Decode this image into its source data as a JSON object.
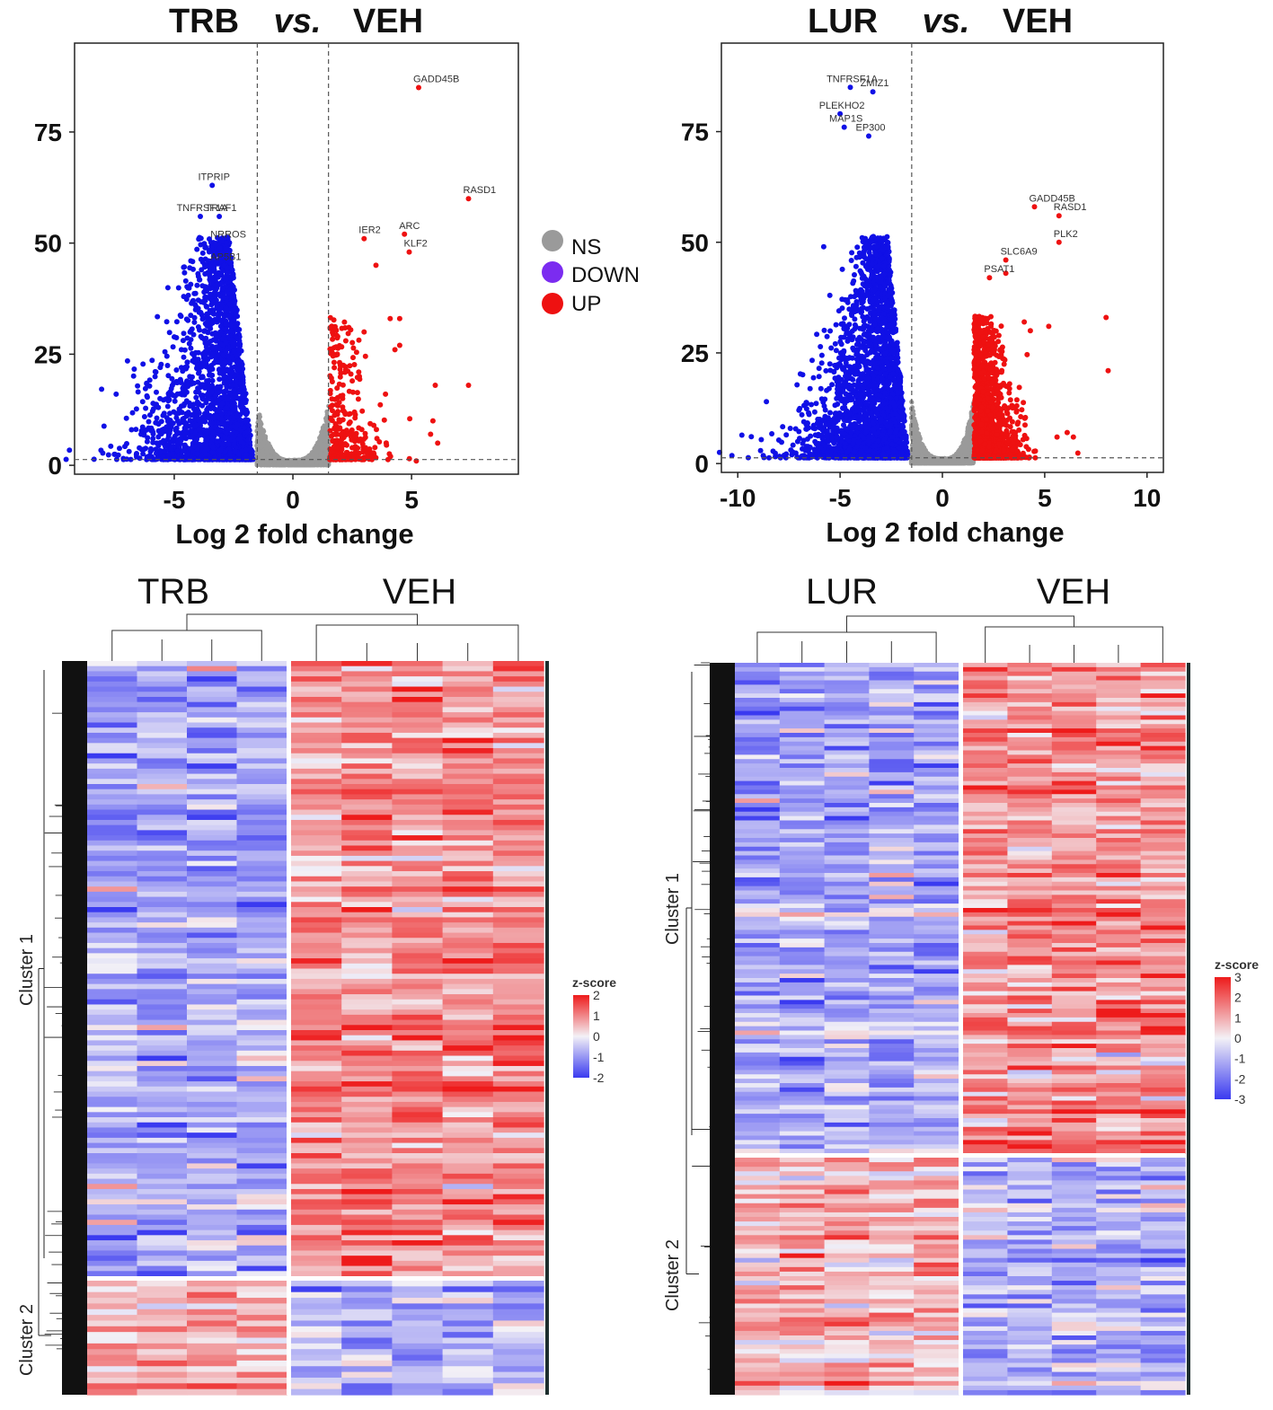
{
  "colors": {
    "ns": "#9a9a9a",
    "down": "#1010e6",
    "up": "#ee1111",
    "heat_low": "#3a3af0",
    "heat_mid": "#f3f1f6",
    "heat_high": "#ee1b1b"
  },
  "chart_data": [
    {
      "type": "scatter",
      "id": "volcano-trb",
      "title": {
        "left": "TRB",
        "mid": "vs.",
        "right": "VEH"
      },
      "xlabel": "Log 2 fold change",
      "ylabel": "",
      "xlim": [
        -9.2,
        9.5
      ],
      "ylim": [
        -2,
        95
      ],
      "xticks": [
        -5,
        0,
        5
      ],
      "yticks": [
        0,
        25,
        50,
        75
      ],
      "thresholds": {
        "fc": 1.5,
        "p": 1.3
      },
      "legend": {
        "position": "right",
        "entries": [
          {
            "key": "ns",
            "label": "NS"
          },
          {
            "key": "down",
            "label": "DOWN"
          },
          {
            "key": "up",
            "label": "UP"
          }
        ]
      },
      "labeled_genes": [
        {
          "gene": "GADD45B",
          "x": 5.3,
          "y": 85,
          "group": "up"
        },
        {
          "gene": "RASD1",
          "x": 7.4,
          "y": 60,
          "group": "up"
        },
        {
          "gene": "ARC",
          "x": 4.7,
          "y": 52,
          "group": "up"
        },
        {
          "gene": "IER2",
          "x": 3.0,
          "y": 51,
          "group": "up"
        },
        {
          "gene": "KLF2",
          "x": 4.9,
          "y": 48,
          "group": "up"
        },
        {
          "gene": "ITPRIP",
          "x": -3.4,
          "y": 63,
          "group": "down"
        },
        {
          "gene": "TNFRSF1A",
          "x": -3.9,
          "y": 56,
          "group": "down"
        },
        {
          "gene": "TRAF1",
          "x": -3.1,
          "y": 56,
          "group": "down"
        },
        {
          "gene": "NRROS",
          "x": -2.8,
          "y": 50,
          "group": "down"
        },
        {
          "gene": "AP5B1",
          "x": -2.9,
          "y": 45,
          "group": "down"
        }
      ],
      "extra_points": {
        "up": [
          [
            3.5,
            45
          ],
          [
            4.1,
            33
          ],
          [
            4.5,
            33
          ],
          [
            3.0,
            30
          ],
          [
            4.5,
            27
          ],
          [
            4.3,
            26
          ],
          [
            3.9,
            16
          ],
          [
            6.0,
            18
          ],
          [
            7.4,
            18
          ],
          [
            2.8,
            20
          ],
          [
            2.5,
            19
          ],
          [
            5.9,
            10
          ],
          [
            5.8,
            7
          ],
          [
            6.1,
            5
          ],
          [
            5.2,
            1
          ]
        ],
        "down": [
          [
            -4.3,
            46
          ],
          [
            -4.6,
            38
          ],
          [
            -4.1,
            35
          ],
          [
            -6.8,
            8
          ],
          [
            -6.4,
            7
          ],
          [
            -5.9,
            6
          ],
          [
            -5.6,
            15
          ],
          [
            -4.7,
            22
          ]
        ]
      }
    },
    {
      "type": "scatter",
      "id": "volcano-lur",
      "title": {
        "left": "LUR",
        "mid": "vs.",
        "right": "VEH"
      },
      "xlabel": "Log 2 fold change",
      "ylabel": "",
      "xlim": [
        -10.8,
        10.8
      ],
      "ylim": [
        -2,
        95
      ],
      "xticks": [
        -10,
        -5,
        0,
        5,
        10
      ],
      "yticks": [
        0,
        25,
        50,
        75
      ],
      "thresholds": {
        "fc": 1.5,
        "p": 1.3
      },
      "labeled_genes": [
        {
          "gene": "TNFRSF1A",
          "x": -4.5,
          "y": 85,
          "group": "down"
        },
        {
          "gene": "ZMIZ1",
          "x": -3.4,
          "y": 84,
          "group": "down"
        },
        {
          "gene": "PLEKHO2",
          "x": -5.0,
          "y": 79,
          "group": "down"
        },
        {
          "gene": "MAP1S",
          "x": -4.8,
          "y": 76,
          "group": "down"
        },
        {
          "gene": "EP300",
          "x": -3.6,
          "y": 74,
          "group": "down"
        },
        {
          "gene": "GADD45B",
          "x": 4.5,
          "y": 58,
          "group": "up"
        },
        {
          "gene": "RASD1",
          "x": 5.7,
          "y": 56,
          "group": "up"
        },
        {
          "gene": "PLK2",
          "x": 5.7,
          "y": 50,
          "group": "up"
        },
        {
          "gene": "SLC6A9",
          "x": 3.1,
          "y": 46,
          "group": "up"
        },
        {
          "gene": "PSAT1",
          "x": 2.3,
          "y": 42,
          "group": "up"
        }
      ],
      "extra_points": {
        "up": [
          [
            8.0,
            33
          ],
          [
            8.1,
            21
          ],
          [
            5.6,
            6
          ],
          [
            6.1,
            7
          ],
          [
            6.4,
            6
          ],
          [
            4.3,
            30
          ],
          [
            5.2,
            31
          ],
          [
            4.0,
            32
          ],
          [
            3.1,
            43
          ]
        ],
        "down": [
          [
            -8.6,
            14
          ],
          [
            -6.3,
            8
          ],
          [
            -6.0,
            10
          ],
          [
            -5.8,
            49
          ],
          [
            -5.5,
            38
          ]
        ]
      }
    },
    {
      "type": "heatmap",
      "id": "heatmap-trb",
      "group_labels": [
        "TRB",
        "VEH"
      ],
      "samples_per_group": [
        4,
        5
      ],
      "clusters": [
        {
          "label": "Cluster 1",
          "rows": 120
        },
        {
          "label": "Cluster 2",
          "rows": 20
        }
      ],
      "legend": {
        "title": "z-score",
        "ticks": [
          "2",
          "1",
          "0",
          "-1",
          "-2"
        ]
      }
    },
    {
      "type": "heatmap",
      "id": "heatmap-lur",
      "group_labels": [
        "LUR",
        "VEH"
      ],
      "samples_per_group": [
        5,
        5
      ],
      "clusters": [
        {
          "label": "Cluster 1",
          "rows": 112
        },
        {
          "label": "Cluster 2",
          "rows": 52
        }
      ],
      "legend": {
        "title": "z-score",
        "ticks": [
          "3",
          "2",
          "1",
          "0",
          "-1",
          "-2",
          "-3"
        ]
      }
    }
  ]
}
